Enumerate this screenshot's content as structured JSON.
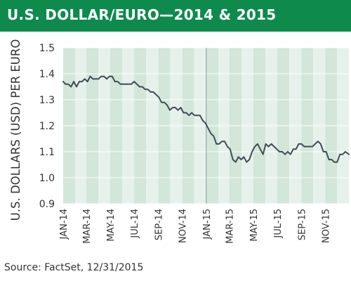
{
  "header": {
    "title": "U.S. DOLLAR/EURO—2014 & 2015"
  },
  "source": "Source: FactSet, 12/31/2015",
  "colors": {
    "header": "#0e8a4c",
    "stripe_dark": "#d2e6da",
    "stripe_light": "#e7f1eb",
    "line": "#3f4c56",
    "grid": "#ffffff",
    "divider": "#8b97a0"
  },
  "chart_data": {
    "type": "line",
    "title": "U.S. DOLLAR/EURO—2014 & 2015",
    "xlabel": "",
    "ylabel": "U.S. DOLLARS (USD) PER EURO",
    "ylim": [
      0.9,
      1.5
    ],
    "yticks": [
      "1.5",
      "1.4",
      "1.3",
      "1.2",
      "1.1",
      "1.0",
      "0.9"
    ],
    "xticks": [
      "JAN-14",
      "MAR-14",
      "MAY-14",
      "JUL-14",
      "SEP-14",
      "NOV-14",
      "JAN-15",
      "MAR-15",
      "MAY-15",
      "JUL-15",
      "SEP-15",
      "NOV-15"
    ],
    "grid": true,
    "legend": "none",
    "series": [
      {
        "x": [
          "2014-01-01",
          "2014-01-07",
          "2014-01-14",
          "2014-01-21",
          "2014-01-28",
          "2014-02-04",
          "2014-02-11",
          "2014-02-18",
          "2014-02-25",
          "2014-03-04",
          "2014-03-11",
          "2014-03-18",
          "2014-03-25",
          "2014-04-01",
          "2014-04-08",
          "2014-04-15",
          "2014-04-22",
          "2014-04-29",
          "2014-05-06",
          "2014-05-13",
          "2014-05-20",
          "2014-05-27",
          "2014-06-03",
          "2014-06-10",
          "2014-06-17",
          "2014-06-24",
          "2014-07-01",
          "2014-07-08",
          "2014-07-15",
          "2014-07-22",
          "2014-07-29",
          "2014-08-05",
          "2014-08-12",
          "2014-08-19",
          "2014-08-26",
          "2014-09-02",
          "2014-09-09",
          "2014-09-16",
          "2014-09-23",
          "2014-09-30",
          "2014-10-07",
          "2014-10-14",
          "2014-10-21",
          "2014-10-28",
          "2014-11-04",
          "2014-11-11",
          "2014-11-18",
          "2014-11-25",
          "2014-12-02",
          "2014-12-09",
          "2014-12-16",
          "2014-12-23",
          "2014-12-30",
          "2015-01-06",
          "2015-01-13",
          "2015-01-20",
          "2015-01-27",
          "2015-02-03",
          "2015-02-10",
          "2015-02-17",
          "2015-02-24",
          "2015-03-03",
          "2015-03-10",
          "2015-03-17",
          "2015-03-24",
          "2015-03-31",
          "2015-04-07",
          "2015-04-14",
          "2015-04-21",
          "2015-04-28",
          "2015-05-05",
          "2015-05-12",
          "2015-05-19",
          "2015-05-26",
          "2015-06-02",
          "2015-06-09",
          "2015-06-16",
          "2015-06-23",
          "2015-06-30",
          "2015-07-07",
          "2015-07-14",
          "2015-07-21",
          "2015-07-28",
          "2015-08-04",
          "2015-08-11",
          "2015-08-18",
          "2015-08-25",
          "2015-09-01",
          "2015-09-08",
          "2015-09-15",
          "2015-09-22",
          "2015-09-29",
          "2015-10-06",
          "2015-10-13",
          "2015-10-20",
          "2015-10-27",
          "2015-11-03",
          "2015-11-10",
          "2015-11-17",
          "2015-11-24",
          "2015-12-01",
          "2015-12-08",
          "2015-12-15",
          "2015-12-22",
          "2015-12-31"
        ],
        "y": [
          1.37,
          1.36,
          1.36,
          1.35,
          1.37,
          1.35,
          1.37,
          1.37,
          1.38,
          1.37,
          1.39,
          1.38,
          1.38,
          1.38,
          1.39,
          1.39,
          1.38,
          1.39,
          1.39,
          1.37,
          1.37,
          1.36,
          1.36,
          1.36,
          1.36,
          1.36,
          1.37,
          1.36,
          1.35,
          1.35,
          1.34,
          1.34,
          1.33,
          1.33,
          1.32,
          1.31,
          1.29,
          1.29,
          1.28,
          1.26,
          1.27,
          1.27,
          1.26,
          1.27,
          1.25,
          1.25,
          1.24,
          1.25,
          1.24,
          1.24,
          1.24,
          1.22,
          1.21,
          1.19,
          1.17,
          1.16,
          1.13,
          1.13,
          1.14,
          1.14,
          1.12,
          1.11,
          1.07,
          1.06,
          1.08,
          1.07,
          1.08,
          1.06,
          1.07,
          1.1,
          1.12,
          1.13,
          1.11,
          1.09,
          1.13,
          1.12,
          1.13,
          1.12,
          1.11,
          1.1,
          1.1,
          1.09,
          1.1,
          1.09,
          1.11,
          1.11,
          1.13,
          1.13,
          1.12,
          1.12,
          1.12,
          1.12,
          1.13,
          1.14,
          1.13,
          1.1,
          1.1,
          1.07,
          1.07,
          1.06,
          1.06,
          1.09,
          1.09,
          1.1,
          1.09
        ]
      }
    ]
  }
}
